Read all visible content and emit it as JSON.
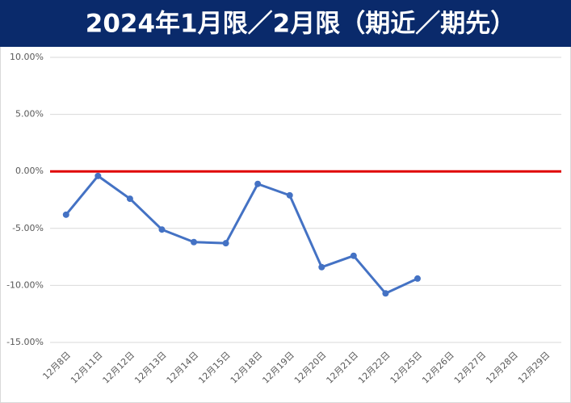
{
  "chart_data": {
    "type": "line",
    "title": "2024年1月限／2月限（期近／期先）",
    "categories": [
      "12月8日",
      "12月11日",
      "12月12日",
      "12月13日",
      "12月14日",
      "12月15日",
      "12月18日",
      "12月19日",
      "12月20日",
      "12月21日",
      "12月22日",
      "12月25日",
      "12月26日",
      "12月27日",
      "12月28日",
      "12月29日"
    ],
    "series": [
      {
        "name": "期近／期先",
        "color": "#4472c4",
        "values": [
          -3.8,
          -0.4,
          -2.4,
          -5.1,
          -6.2,
          -6.3,
          -1.1,
          -2.1,
          -8.4,
          -7.4,
          -10.7,
          -9.4,
          null,
          null,
          null,
          null
        ]
      }
    ],
    "reference_line": {
      "value": 0,
      "color": "#e00000"
    },
    "ylim": [
      -15,
      10
    ],
    "yticks": [
      {
        "value": -15,
        "label": "-15.00%"
      },
      {
        "value": -10,
        "label": "-10.00%"
      },
      {
        "value": -5,
        "label": "-5.00%"
      },
      {
        "value": 0,
        "label": "0.00%"
      },
      {
        "value": 5,
        "label": "5.00%"
      },
      {
        "value": 10,
        "label": "10.00%"
      }
    ],
    "grid": true
  }
}
